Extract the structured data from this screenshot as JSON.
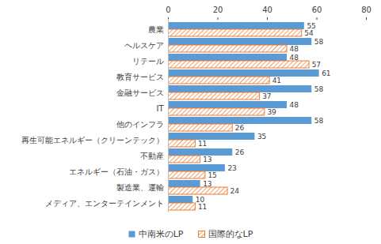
{
  "chart_data": {
    "type": "bar",
    "orientation": "horizontal",
    "categories": [
      "農業",
      "ヘルスケア",
      "リテール",
      "教育サービス",
      "金融サービス",
      "IT",
      "他のインフラ",
      "再生可能エネルギー（クリーンテック）",
      "不動産",
      "エネルギー（石油・ガス）",
      "製造業、運輸",
      "メディア、エンターテインメント"
    ],
    "series": [
      {
        "name": "中南米のLP",
        "color": "#5b9bd5",
        "values": [
          55,
          58,
          48,
          61,
          58,
          48,
          58,
          35,
          26,
          23,
          13,
          10
        ]
      },
      {
        "name": "国際的なLP",
        "color": "#ed7d31",
        "values": [
          54,
          48,
          57,
          41,
          37,
          39,
          26,
          11,
          13,
          15,
          24,
          11
        ]
      }
    ],
    "xlim": [
      0,
      80
    ],
    "xticks": [
      0,
      20,
      40,
      60,
      80
    ],
    "data_labels": true,
    "legend": "bottom",
    "grid": false
  }
}
